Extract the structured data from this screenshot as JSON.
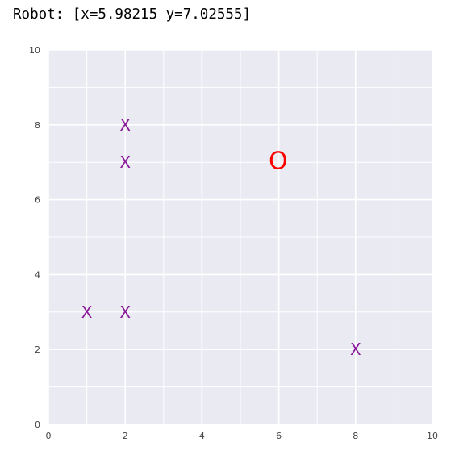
{
  "readout": "Robot: [x=5.98215 y=7.02555]",
  "chart_data": {
    "type": "scatter",
    "title": "",
    "xlabel": "",
    "ylabel": "",
    "xlim": [
      0,
      10
    ],
    "ylim": [
      0,
      10
    ],
    "grid": true,
    "x_ticks": [
      "0",
      "2",
      "4",
      "6",
      "8",
      "10"
    ],
    "y_ticks": [
      "0",
      "2",
      "4",
      "6",
      "8",
      "10"
    ],
    "series": [
      {
        "marker": "X",
        "color": "#8b1a9b",
        "points": [
          {
            "x": 2,
            "y": 8
          },
          {
            "x": 2,
            "y": 7
          },
          {
            "x": 1,
            "y": 3
          },
          {
            "x": 2,
            "y": 3
          },
          {
            "x": 8,
            "y": 2
          }
        ]
      },
      {
        "marker": "O",
        "color": "#ff0000",
        "points": [
          {
            "x": 5.98215,
            "y": 7.02555
          }
        ]
      }
    ],
    "background": "#eaeaf2",
    "gridline_color": "#ffffff"
  }
}
